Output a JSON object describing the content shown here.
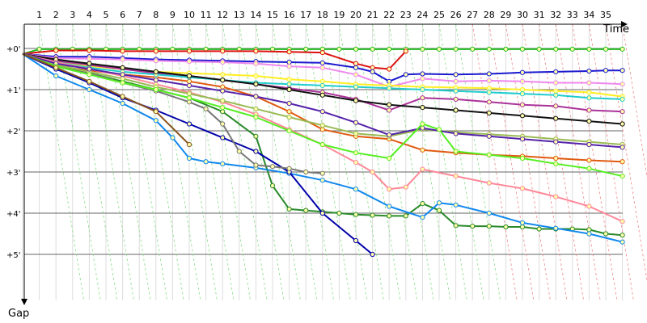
{
  "chart_data": {
    "type": "line",
    "title": "",
    "xlabel": "Time",
    "ylabel": "Gap",
    "x_ticks": [
      1,
      2,
      3,
      4,
      5,
      6,
      7,
      8,
      9,
      10,
      11,
      12,
      13,
      14,
      15,
      16,
      17,
      18,
      19,
      20,
      21,
      22,
      23,
      24,
      25,
      26,
      27,
      28,
      29,
      30,
      31,
      32,
      33,
      34,
      35
    ],
    "y_ticks": [
      "+0'",
      "+1'",
      "+2'",
      "+3'",
      "+4'",
      "+5'"
    ],
    "y_tick_values": [
      0,
      60,
      120,
      180,
      240,
      300
    ],
    "xlim": [
      0,
      36
    ],
    "ylim": [
      -30,
      360
    ],
    "y_inverted": true,
    "grid": true,
    "series": [
      {
        "color": "#22bb22",
        "x": [
          0,
          1,
          2,
          3,
          4,
          5,
          6,
          7,
          8,
          9,
          10,
          11,
          12,
          13,
          14,
          15,
          16,
          17,
          18,
          19,
          20,
          21,
          22,
          23,
          24,
          25,
          26,
          27,
          28,
          29,
          30,
          31,
          32,
          33,
          34,
          35,
          36
        ],
        "y": [
          8,
          1,
          1,
          1,
          1,
          1,
          1,
          1,
          1,
          1,
          1,
          1,
          1,
          1,
          1,
          1,
          1,
          1,
          1,
          1,
          1,
          1,
          1,
          1,
          1,
          1,
          1,
          1,
          1,
          1,
          1,
          1,
          1,
          1,
          1,
          1,
          1
        ]
      },
      {
        "color": "#dd1111",
        "x": [
          0,
          2,
          4,
          6,
          8,
          10,
          12,
          14,
          16,
          18,
          20,
          21,
          22,
          23
        ],
        "y": [
          8,
          3,
          3,
          4,
          4,
          4,
          4,
          4,
          5,
          6,
          22,
          28,
          30,
          4
        ]
      },
      {
        "color": "#1a1ad0",
        "x": [
          0,
          2,
          4,
          6,
          8,
          10,
          12,
          14,
          16,
          18,
          20,
          21,
          22,
          23,
          24,
          26,
          28,
          30,
          32,
          34,
          35,
          36
        ],
        "y": [
          8,
          12,
          12,
          14,
          16,
          17,
          18,
          19,
          20,
          21,
          28,
          34,
          48,
          38,
          37,
          38,
          37,
          35,
          34,
          33,
          32,
          32
        ]
      },
      {
        "color": "#ee88ee",
        "x": [
          0,
          2,
          4,
          6,
          8,
          10,
          12,
          14,
          16,
          18,
          20,
          22,
          24,
          26,
          28,
          30,
          32,
          34,
          36
        ],
        "y": [
          8,
          14,
          15,
          16,
          18,
          19,
          20,
          22,
          26,
          28,
          38,
          56,
          44,
          48,
          47,
          48,
          50,
          50,
          52
        ]
      },
      {
        "color": "#ffee22",
        "x": [
          0,
          2,
          4,
          6,
          8,
          10,
          12,
          14,
          16,
          18,
          20,
          22,
          24,
          26,
          28,
          30,
          32,
          34,
          36
        ],
        "y": [
          8,
          20,
          26,
          30,
          34,
          36,
          38,
          40,
          45,
          48,
          52,
          54,
          56,
          57,
          58,
          60,
          62,
          64,
          70
        ]
      },
      {
        "color": "#e05a10",
        "x": [
          0,
          2,
          4,
          6,
          8,
          10,
          12,
          14,
          16,
          18,
          20,
          22,
          24,
          26,
          28,
          30,
          32,
          34,
          36
        ],
        "y": [
          8,
          26,
          32,
          38,
          42,
          48,
          56,
          70,
          92,
          118,
          128,
          132,
          148,
          152,
          155,
          157,
          160,
          163,
          165
        ]
      },
      {
        "color": "#aa3399",
        "x": [
          0,
          2,
          4,
          6,
          8,
          10,
          12,
          14,
          16,
          18,
          20,
          22,
          24,
          26,
          28,
          30,
          32,
          34,
          36
        ],
        "y": [
          8,
          18,
          24,
          30,
          36,
          40,
          46,
          52,
          58,
          64,
          74,
          90,
          72,
          74,
          78,
          82,
          84,
          90,
          92
        ]
      },
      {
        "color": "#2a8a2a",
        "x": [
          0,
          2,
          4,
          6,
          8,
          10,
          12,
          14,
          15,
          16,
          17,
          18,
          19,
          20,
          21,
          22,
          23,
          24,
          25,
          26,
          27,
          28,
          29,
          30,
          31,
          32,
          33,
          34,
          35,
          36
        ],
        "y": [
          8,
          24,
          36,
          48,
          60,
          72,
          92,
          128,
          200,
          234,
          236,
          238,
          240,
          242,
          243,
          244,
          244,
          226,
          236,
          258,
          259,
          259,
          260,
          260,
          263,
          263,
          263,
          264,
          270,
          272
        ]
      },
      {
        "color": "#1188ee",
        "x": [
          0,
          2,
          4,
          6,
          8,
          9,
          10,
          11,
          12,
          14,
          16,
          18,
          20,
          22,
          24,
          25,
          26,
          28,
          30,
          32,
          34,
          36
        ],
        "y": [
          8,
          40,
          60,
          80,
          105,
          130,
          160,
          165,
          168,
          174,
          182,
          192,
          205,
          230,
          246,
          225,
          228,
          240,
          254,
          262,
          270,
          282
        ]
      },
      {
        "color": "#0000aa",
        "x": [
          0,
          2,
          4,
          6,
          8,
          10,
          12,
          14,
          16,
          18,
          20,
          21
        ],
        "y": [
          8,
          30,
          50,
          72,
          90,
          110,
          130,
          150,
          180,
          240,
          280,
          300
        ]
      },
      {
        "color": "#777777",
        "x": [
          0,
          2,
          4,
          6,
          8,
          10,
          11,
          12,
          13,
          14,
          15,
          16,
          17,
          18
        ],
        "y": [
          8,
          22,
          36,
          50,
          62,
          78,
          88,
          110,
          150,
          170,
          172,
          175,
          180,
          182
        ]
      },
      {
        "color": "#22cccc",
        "x": [
          0,
          2,
          4,
          6,
          8,
          10,
          12,
          14,
          16,
          18,
          20,
          22,
          24,
          26,
          28,
          30,
          32,
          34,
          36
        ],
        "y": [
          8,
          20,
          28,
          34,
          38,
          42,
          46,
          50,
          52,
          54,
          56,
          58,
          60,
          62,
          64,
          66,
          68,
          72,
          74
        ]
      },
      {
        "color": "#111111",
        "x": [
          0,
          2,
          4,
          6,
          8,
          10,
          12,
          14,
          16,
          18,
          20,
          22,
          24,
          26,
          28,
          30,
          32,
          34,
          36
        ],
        "y": [
          8,
          16,
          22,
          28,
          34,
          40,
          46,
          52,
          60,
          68,
          76,
          82,
          86,
          90,
          94,
          98,
          102,
          106,
          110
        ]
      },
      {
        "color": "#ff8899",
        "x": [
          0,
          2,
          4,
          6,
          8,
          10,
          12,
          14,
          16,
          18,
          20,
          21,
          22,
          23,
          24,
          26,
          28,
          30,
          32,
          34,
          36
        ],
        "y": [
          8,
          20,
          30,
          40,
          52,
          64,
          78,
          96,
          118,
          140,
          166,
          180,
          205,
          202,
          176,
          186,
          196,
          204,
          216,
          230,
          252
        ]
      },
      {
        "color": "#99bb55",
        "x": [
          0,
          2,
          4,
          6,
          8,
          10,
          12,
          14,
          16,
          18,
          20,
          22,
          24,
          26,
          28,
          30,
          32,
          34,
          36
        ],
        "y": [
          8,
          24,
          34,
          44,
          56,
          66,
          76,
          88,
          100,
          112,
          124,
          128,
          118,
          122,
          125,
          128,
          132,
          136,
          140
        ]
      },
      {
        "color": "#5522aa",
        "x": [
          0,
          2,
          4,
          6,
          8,
          10,
          12,
          14,
          16,
          18,
          20,
          22,
          24,
          26,
          28,
          30,
          32,
          34,
          36
        ],
        "y": [
          8,
          22,
          30,
          38,
          46,
          54,
          62,
          70,
          80,
          92,
          108,
          126,
          116,
          124,
          128,
          132,
          136,
          140,
          144
        ]
      },
      {
        "color": "#55ee22",
        "x": [
          0,
          2,
          4,
          6,
          8,
          10,
          12,
          14,
          16,
          18,
          20,
          22,
          24,
          25,
          26,
          28,
          30,
          32,
          34,
          36
        ],
        "y": [
          8,
          26,
          38,
          50,
          60,
          72,
          86,
          100,
          120,
          140,
          152,
          160,
          110,
          118,
          150,
          155,
          160,
          168,
          175,
          186
        ]
      },
      {
        "color": "#885522",
        "x": [
          0,
          2,
          4,
          6,
          8,
          10
        ],
        "y": [
          8,
          28,
          48,
          70,
          92,
          140
        ]
      }
    ]
  }
}
